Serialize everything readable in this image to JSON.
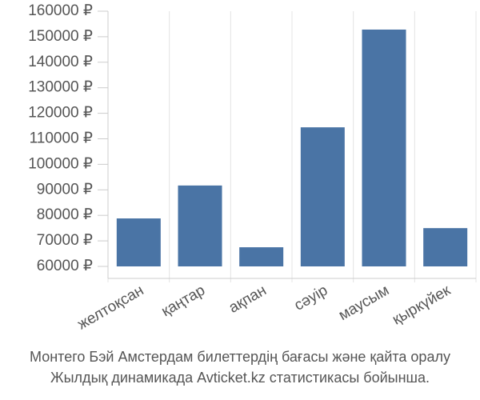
{
  "chart_data": {
    "type": "bar",
    "categories": [
      "желтоқсан",
      "қаңтар",
      "ақпан",
      "сәуір",
      "маусым",
      "қыркүйек"
    ],
    "values": [
      78800,
      91700,
      67500,
      114500,
      152800,
      75000
    ],
    "color": "#4a74a5",
    "ylim": [
      60000,
      160000
    ],
    "yticks": [
      {
        "value": 60000,
        "label": "60000 ₽"
      },
      {
        "value": 70000,
        "label": "70000 ₽"
      },
      {
        "value": 80000,
        "label": "80000 ₽"
      },
      {
        "value": 90000,
        "label": "90000 ₽"
      },
      {
        "value": 100000,
        "label": "100000 ₽"
      },
      {
        "value": 110000,
        "label": "110000 ₽"
      },
      {
        "value": 120000,
        "label": "120000 ₽"
      },
      {
        "value": 130000,
        "label": "130000 ₽"
      },
      {
        "value": 140000,
        "label": "140000 ₽"
      },
      {
        "value": 150000,
        "label": "150000 ₽"
      },
      {
        "value": 160000,
        "label": "160000 ₽"
      }
    ],
    "caption": [
      "Монтего Бэй Амстердам билеттердің бағасы және қайта оралу",
      "Жылдық динамикада Avticket.kz статистикасы бойынша."
    ]
  }
}
